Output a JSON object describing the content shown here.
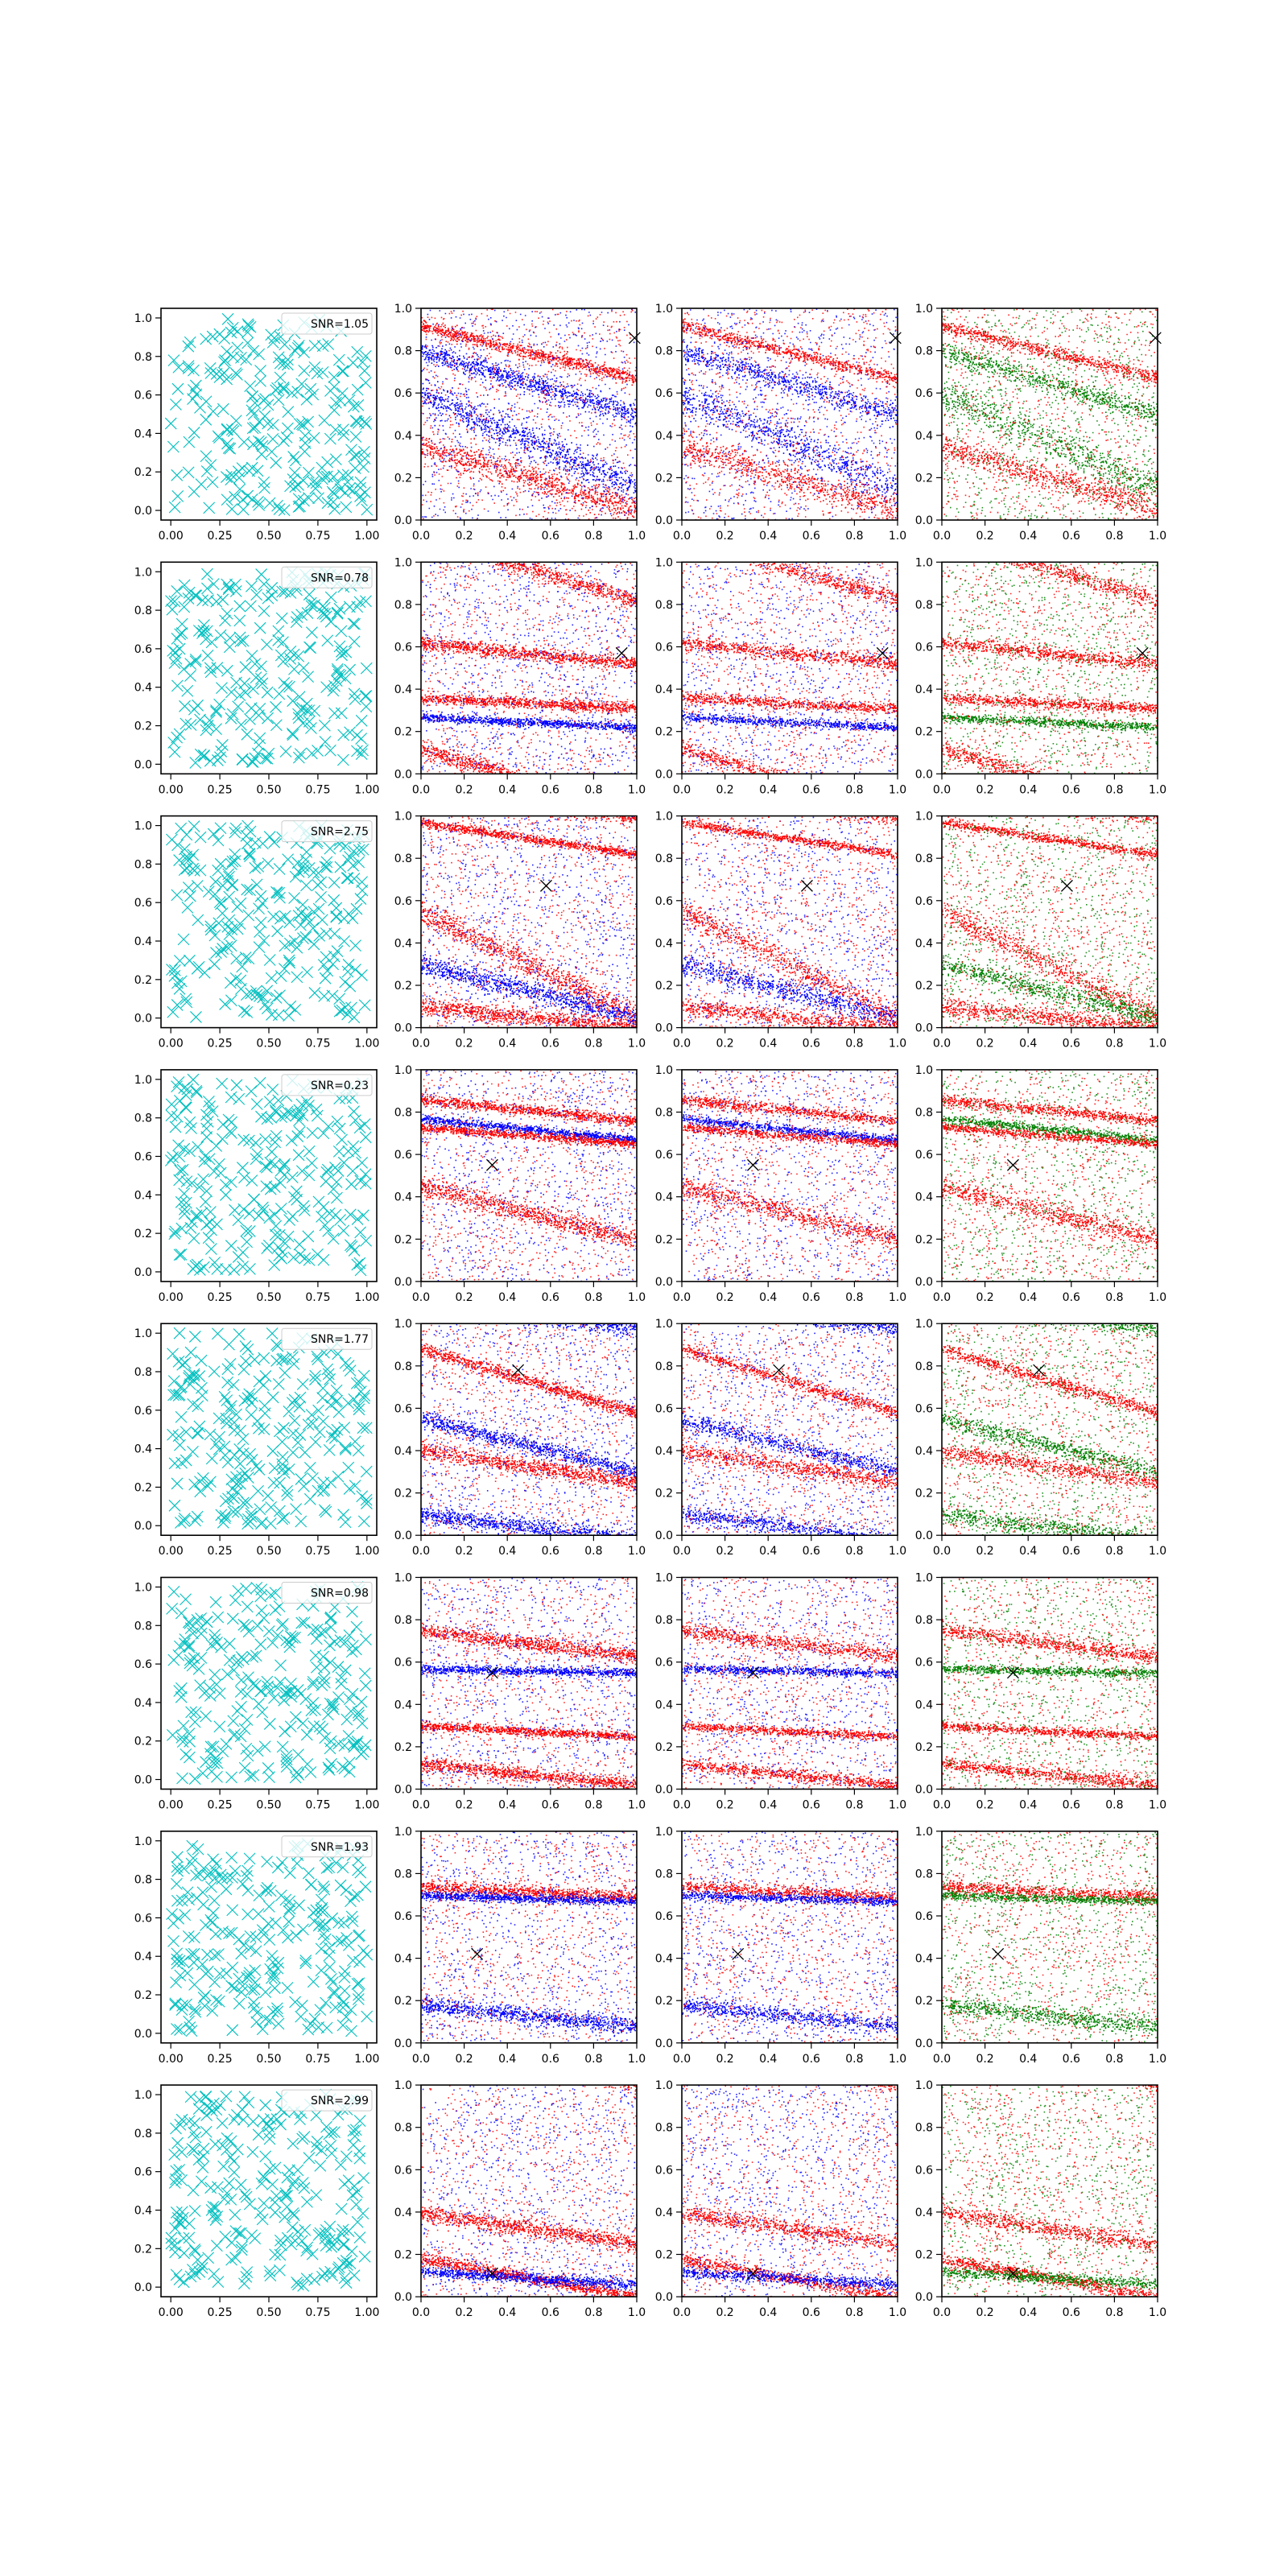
{
  "figure": {
    "rows": 8,
    "columns": 4,
    "marker_color": "#00bfbf",
    "point_colors": {
      "red": "#ff0000",
      "blue": "#0000ff",
      "green": "#008000"
    },
    "cross_color": "#000000"
  },
  "chart_data": {
    "type": "scatter",
    "axes": {
      "xlim": [
        -0.05,
        1.05
      ],
      "ylim": [
        -0.05,
        1.05
      ],
      "xlim_density": [
        0.0,
        1.0
      ],
      "ylim_density": [
        0.0,
        1.0
      ],
      "xticks_first_column": [
        "0.00",
        "0.25",
        "0.50",
        "0.75",
        "1.00"
      ],
      "yticks_first_column": [
        "0.0",
        "0.2",
        "0.4",
        "0.6",
        "0.8",
        "1.0"
      ],
      "xticks_other_columns": [
        "0.0",
        "0.2",
        "0.4",
        "0.6",
        "0.8",
        "1.0"
      ],
      "yticks_other_columns": [
        "0.0",
        "0.2",
        "0.4",
        "0.6",
        "0.8",
        "1.0"
      ],
      "grid": false
    },
    "rows": [
      {
        "snr": "SNR=1.05",
        "cross": [
          0.99,
          0.86
        ],
        "bands": [
          {
            "y0": 0.92,
            "slope": -0.25,
            "w": 0.03,
            "c": "red"
          },
          {
            "y0": 0.6,
            "slope": -0.45,
            "w": 0.08,
            "c": "blue"
          },
          {
            "y0": 0.35,
            "slope": -0.3,
            "w": 0.06,
            "c": "red"
          },
          {
            "y0": 0.8,
            "slope": -0.3,
            "w": 0.05,
            "c": "blue"
          }
        ]
      },
      {
        "snr": "SNR=0.78",
        "cross": [
          0.93,
          0.57
        ],
        "bands": [
          {
            "y0": 0.36,
            "slope": -0.05,
            "w": 0.025,
            "c": "red"
          },
          {
            "y0": 0.27,
            "slope": -0.05,
            "w": 0.02,
            "c": "blue"
          },
          {
            "y0": 0.62,
            "slope": -0.1,
            "w": 0.03,
            "c": "red"
          },
          {
            "y0": 0.12,
            "slope": -0.3,
            "w": 0.04,
            "c": "red"
          }
        ]
      },
      {
        "snr": "SNR=2.75",
        "cross": [
          0.58,
          0.67
        ],
        "bands": [
          {
            "y0": 0.97,
            "slope": -0.15,
            "w": 0.02,
            "c": "red"
          },
          {
            "y0": 0.55,
            "slope": -0.5,
            "w": 0.06,
            "c": "red"
          },
          {
            "y0": 0.3,
            "slope": -0.25,
            "w": 0.05,
            "c": "blue"
          },
          {
            "y0": 0.1,
            "slope": -0.1,
            "w": 0.04,
            "c": "red"
          }
        ]
      },
      {
        "snr": "SNR=0.23",
        "cross": [
          0.33,
          0.55
        ],
        "bands": [
          {
            "y0": 0.86,
            "slope": -0.1,
            "w": 0.025,
            "c": "red"
          },
          {
            "y0": 0.77,
            "slope": -0.1,
            "w": 0.02,
            "c": "blue"
          },
          {
            "y0": 0.73,
            "slope": -0.08,
            "w": 0.02,
            "c": "red"
          },
          {
            "y0": 0.45,
            "slope": -0.25,
            "w": 0.05,
            "c": "red"
          }
        ]
      },
      {
        "snr": "SNR=1.77",
        "cross": [
          0.45,
          0.78
        ],
        "bands": [
          {
            "y0": 0.88,
            "slope": -0.3,
            "w": 0.03,
            "c": "red"
          },
          {
            "y0": 0.55,
            "slope": -0.25,
            "w": 0.04,
            "c": "blue"
          },
          {
            "y0": 0.4,
            "slope": -0.15,
            "w": 0.04,
            "c": "red"
          },
          {
            "y0": 0.1,
            "slope": -0.12,
            "w": 0.04,
            "c": "blue"
          }
        ]
      },
      {
        "snr": "SNR=0.98",
        "cross": [
          0.33,
          0.55
        ],
        "bands": [
          {
            "y0": 0.75,
            "slope": -0.12,
            "w": 0.035,
            "c": "red"
          },
          {
            "y0": 0.57,
            "slope": -0.02,
            "w": 0.02,
            "c": "blue"
          },
          {
            "y0": 0.3,
            "slope": -0.05,
            "w": 0.02,
            "c": "red"
          },
          {
            "y0": 0.12,
            "slope": -0.1,
            "w": 0.03,
            "c": "red"
          }
        ]
      },
      {
        "snr": "SNR=1.93",
        "cross": [
          0.26,
          0.42
        ],
        "bands": [
          {
            "y0": 0.74,
            "slope": -0.05,
            "w": 0.03,
            "c": "red"
          },
          {
            "y0": 0.7,
            "slope": -0.03,
            "w": 0.02,
            "c": "blue"
          },
          {
            "y0": 0.18,
            "slope": -0.1,
            "w": 0.04,
            "c": "blue"
          }
        ]
      },
      {
        "snr": "SNR=2.99",
        "cross": [
          0.33,
          0.11
        ],
        "bands": [
          {
            "y0": 0.18,
            "slope": -0.18,
            "w": 0.03,
            "c": "red"
          },
          {
            "y0": 0.12,
            "slope": -0.06,
            "w": 0.025,
            "c": "blue"
          },
          {
            "y0": 0.4,
            "slope": -0.15,
            "w": 0.04,
            "c": "red"
          }
        ]
      }
    ]
  }
}
